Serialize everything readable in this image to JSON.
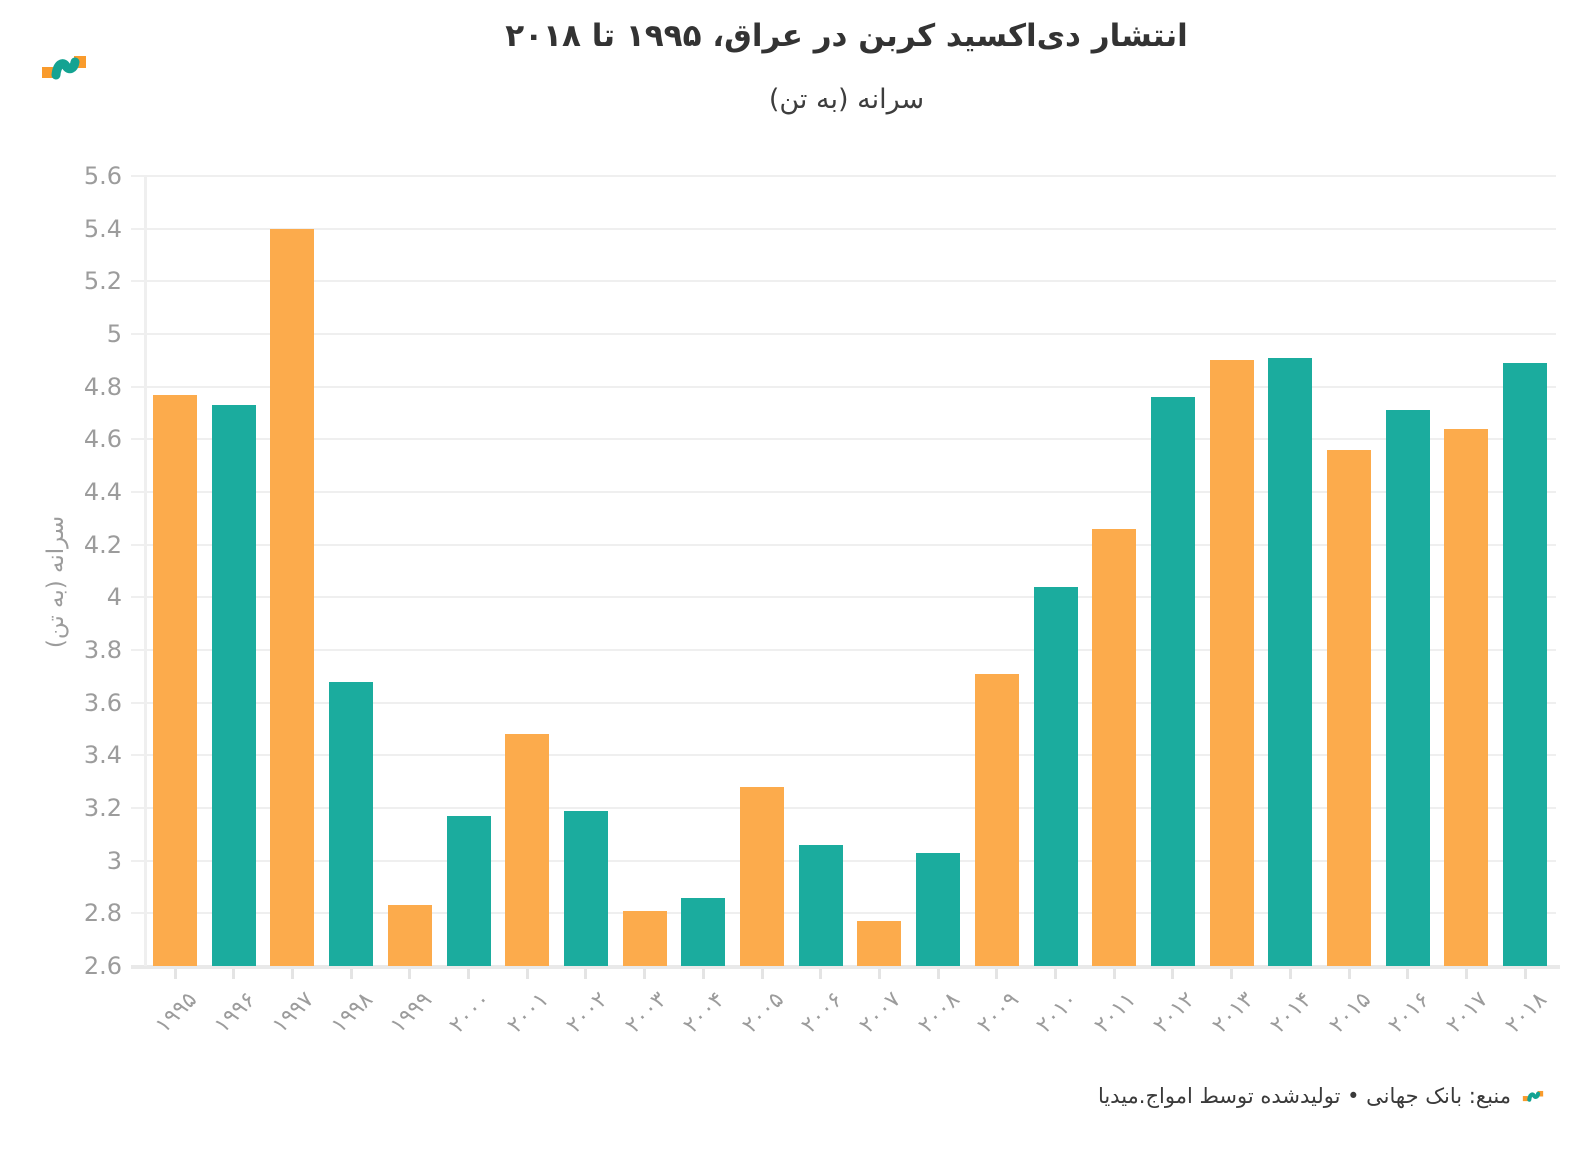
{
  "header": {
    "title": "انتشار دی‌اکسید کربن در عراق، ۱۹۹۵ تا ۲۰۱۸",
    "subtitle": "سرانه (به تن)"
  },
  "footer": {
    "source_text": "منبع: بانک جهانی • تولیدشده توسط امواج.میدیا"
  },
  "colors": {
    "orange": "#FCAB4C",
    "teal": "#1BAC9E",
    "axis_text": "#9C9C9C",
    "grid": "#EFEFEF",
    "title_text": "#333333"
  },
  "chart_data": {
    "type": "bar",
    "title": "انتشار دی‌اکسید کربن در عراق، ۱۹۹۵ تا ۲۰۱۸",
    "subtitle": "سرانه (به تن)",
    "ylabel": "سرانه (به تن)",
    "xlabel": "",
    "ylim": [
      2.6,
      5.6
    ],
    "ytick_step": 0.2,
    "grid": true,
    "legend": false,
    "bar_color_pattern": [
      "orange",
      "teal"
    ],
    "categories": [
      "۱۹۹۵",
      "۱۹۹۶",
      "۱۹۹۷",
      "۱۹۹۸",
      "۱۹۹۹",
      "۲۰۰۰",
      "۲۰۰۱",
      "۲۰۰۲",
      "۲۰۰۳",
      "۲۰۰۴",
      "۲۰۰۵",
      "۲۰۰۶",
      "۲۰۰۷",
      "۲۰۰۸",
      "۲۰۰۹",
      "۲۰۱۰",
      "۲۰۱۱",
      "۲۰۱۲",
      "۲۰۱۳",
      "۲۰۱۴",
      "۲۰۱۵",
      "۲۰۱۶",
      "۲۰۱۷",
      "۲۰۱۸"
    ],
    "values": [
      4.77,
      4.73,
      5.4,
      3.68,
      2.83,
      3.17,
      3.48,
      3.19,
      2.81,
      2.86,
      3.28,
      3.06,
      2.77,
      3.03,
      3.71,
      4.04,
      4.26,
      4.76,
      4.9,
      4.91,
      4.56,
      4.71,
      4.64,
      4.89
    ]
  }
}
